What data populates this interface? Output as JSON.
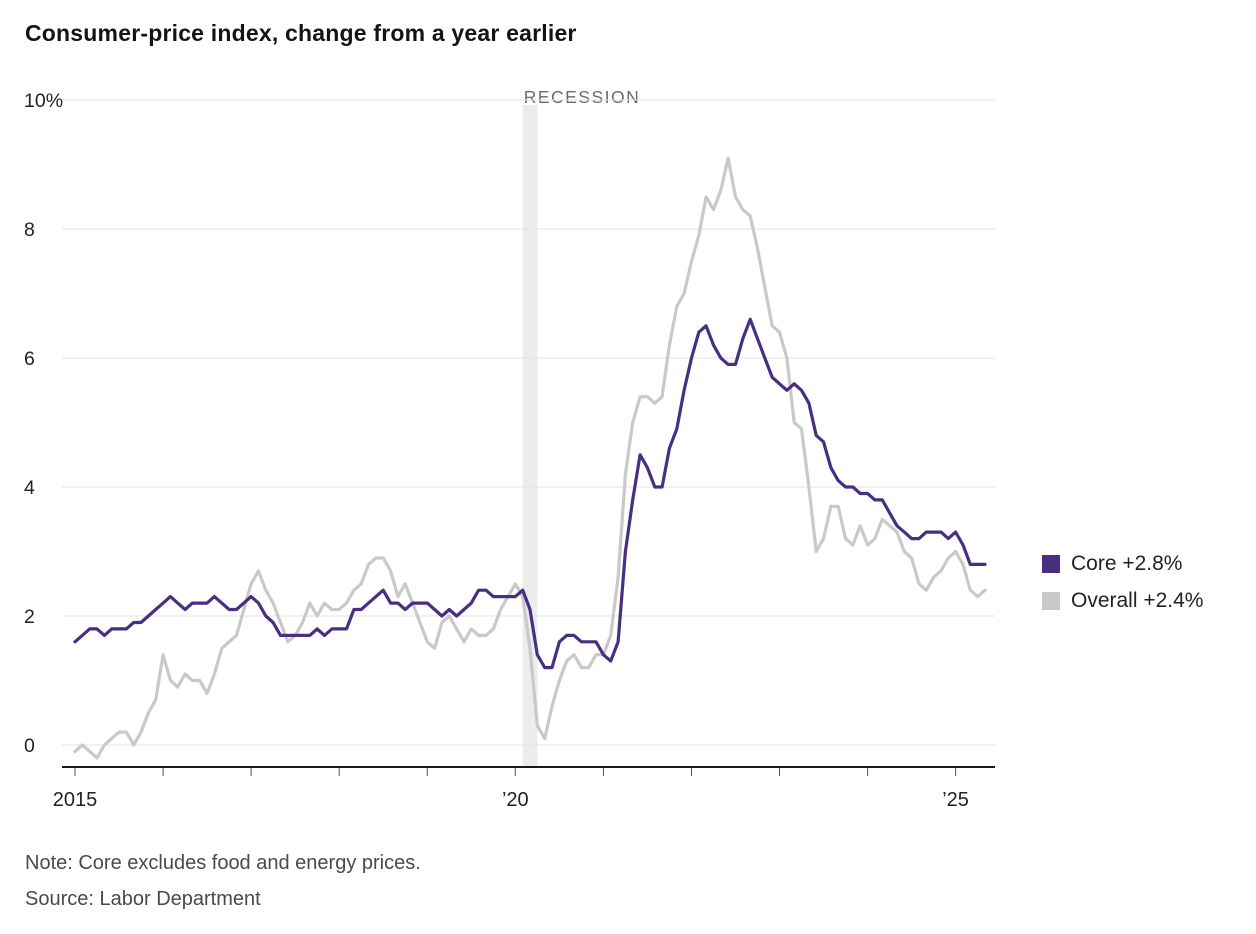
{
  "note": "Note: Core excludes food and energy prices.",
  "source": "Source: Labor Department",
  "chart_data": {
    "type": "line",
    "title": "Consumer-price index, change from a year earlier",
    "x_start": "2015-01",
    "x_end": "2025-05",
    "x_frequency": "monthly",
    "ylim": [
      -0.5,
      10
    ],
    "grid": true,
    "legend_position": "right",
    "yticks": [
      {
        "value": 0,
        "label": "0"
      },
      {
        "value": 2,
        "label": "2"
      },
      {
        "value": 4,
        "label": "4"
      },
      {
        "value": 6,
        "label": "6"
      },
      {
        "value": 8,
        "label": "8"
      },
      {
        "value": 10,
        "label": "10%"
      }
    ],
    "xticks": [
      {
        "month": 0,
        "label": "2015"
      },
      {
        "month": 12,
        "label": ""
      },
      {
        "month": 24,
        "label": ""
      },
      {
        "month": 36,
        "label": ""
      },
      {
        "month": 48,
        "label": ""
      },
      {
        "month": 60,
        "label": "’20"
      },
      {
        "month": 72,
        "label": ""
      },
      {
        "month": 84,
        "label": ""
      },
      {
        "month": 96,
        "label": ""
      },
      {
        "month": 108,
        "label": ""
      },
      {
        "month": 120,
        "label": "’25"
      }
    ],
    "recession_band": {
      "start_month": 61,
      "end_month": 63,
      "label": "RECESSION"
    },
    "series": [
      {
        "name": "Core",
        "legend_label": "Core +2.8%",
        "color": "#492f81",
        "values": [
          1.6,
          1.7,
          1.8,
          1.8,
          1.7,
          1.8,
          1.8,
          1.8,
          1.9,
          1.9,
          2.0,
          2.1,
          2.2,
          2.3,
          2.2,
          2.1,
          2.2,
          2.2,
          2.2,
          2.3,
          2.2,
          2.1,
          2.1,
          2.2,
          2.3,
          2.2,
          2.0,
          1.9,
          1.7,
          1.7,
          1.7,
          1.7,
          1.7,
          1.8,
          1.7,
          1.8,
          1.8,
          1.8,
          2.1,
          2.1,
          2.2,
          2.3,
          2.4,
          2.2,
          2.2,
          2.1,
          2.2,
          2.2,
          2.2,
          2.1,
          2.0,
          2.1,
          2.0,
          2.1,
          2.2,
          2.4,
          2.4,
          2.3,
          2.3,
          2.3,
          2.3,
          2.4,
          2.1,
          1.4,
          1.2,
          1.2,
          1.6,
          1.7,
          1.7,
          1.6,
          1.6,
          1.6,
          1.4,
          1.3,
          1.6,
          3.0,
          3.8,
          4.5,
          4.3,
          4.0,
          4.0,
          4.6,
          4.9,
          5.5,
          6.0,
          6.4,
          6.5,
          6.2,
          6.0,
          5.9,
          5.9,
          6.3,
          6.6,
          6.3,
          6.0,
          5.7,
          5.6,
          5.5,
          5.6,
          5.5,
          5.3,
          4.8,
          4.7,
          4.3,
          4.1,
          4.0,
          4.0,
          3.9,
          3.9,
          3.8,
          3.8,
          3.6,
          3.4,
          3.3,
          3.2,
          3.2,
          3.3,
          3.3,
          3.3,
          3.2,
          3.3,
          3.1,
          2.8,
          2.8,
          2.8
        ]
      },
      {
        "name": "Overall",
        "legend_label": "Overall +2.4%",
        "color": "#c9c9c9",
        "values": [
          -0.1,
          0.0,
          -0.1,
          -0.2,
          0.0,
          0.1,
          0.2,
          0.2,
          0.0,
          0.2,
          0.5,
          0.7,
          1.4,
          1.0,
          0.9,
          1.1,
          1.0,
          1.0,
          0.8,
          1.1,
          1.5,
          1.6,
          1.7,
          2.1,
          2.5,
          2.7,
          2.4,
          2.2,
          1.9,
          1.6,
          1.7,
          1.9,
          2.2,
          2.0,
          2.2,
          2.1,
          2.1,
          2.2,
          2.4,
          2.5,
          2.8,
          2.9,
          2.9,
          2.7,
          2.3,
          2.5,
          2.2,
          1.9,
          1.6,
          1.5,
          1.9,
          2.0,
          1.8,
          1.6,
          1.8,
          1.7,
          1.7,
          1.8,
          2.1,
          2.3,
          2.5,
          2.3,
          1.5,
          0.3,
          0.1,
          0.6,
          1.0,
          1.3,
          1.4,
          1.2,
          1.2,
          1.4,
          1.4,
          1.7,
          2.6,
          4.2,
          5.0,
          5.4,
          5.4,
          5.3,
          5.4,
          6.2,
          6.8,
          7.0,
          7.5,
          7.9,
          8.5,
          8.3,
          8.6,
          9.1,
          8.5,
          8.3,
          8.2,
          7.7,
          7.1,
          6.5,
          6.4,
          6.0,
          5.0,
          4.9,
          4.0,
          3.0,
          3.2,
          3.7,
          3.7,
          3.2,
          3.1,
          3.4,
          3.1,
          3.2,
          3.5,
          3.4,
          3.3,
          3.0,
          2.9,
          2.5,
          2.4,
          2.6,
          2.7,
          2.9,
          3.0,
          2.8,
          2.4,
          2.3,
          2.4
        ]
      }
    ],
    "colors": {
      "core_line": "#492f81",
      "overall_line": "#c9c9c9",
      "gridline": "#e3e3e3",
      "axis": "#1a1a1a",
      "recession_band": "#ececec",
      "recession_label": "#6b6b6b"
    }
  }
}
